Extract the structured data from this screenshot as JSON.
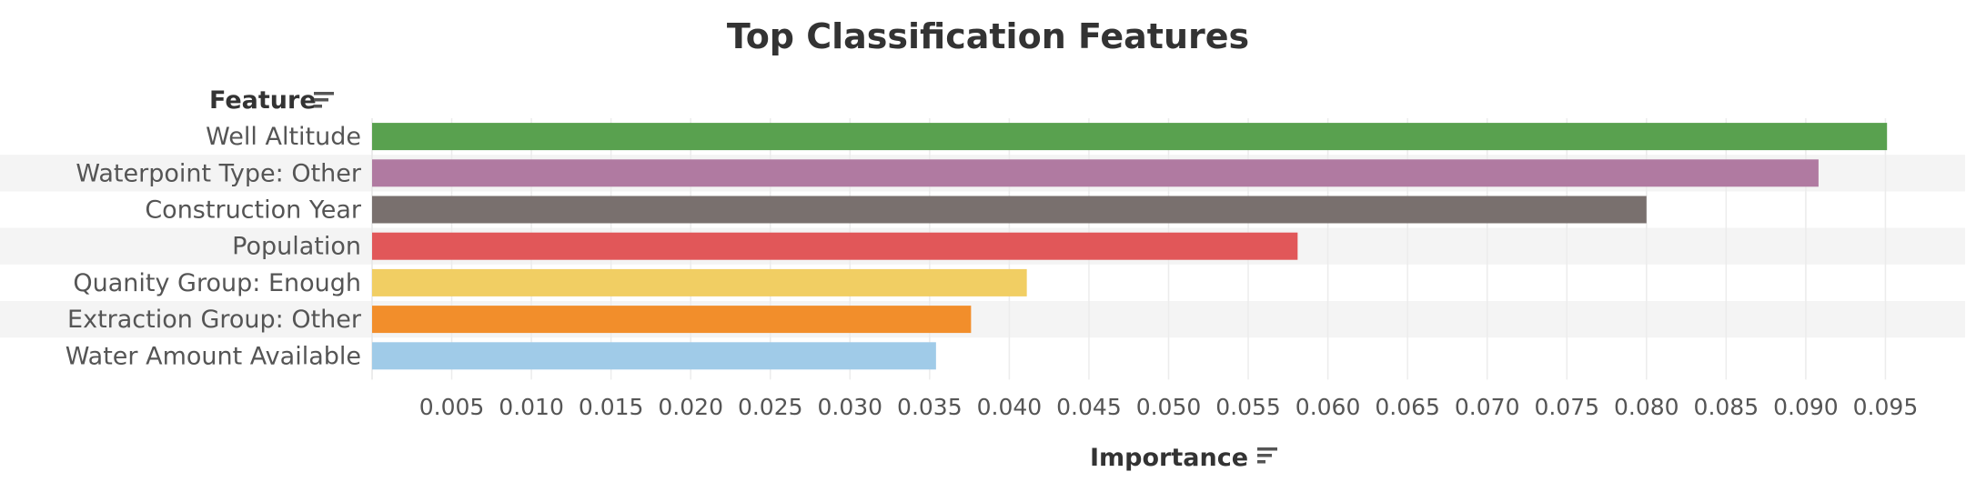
{
  "chart_data": {
    "type": "bar",
    "orientation": "horizontal",
    "title": "Top Classification Features",
    "ylabel": "Feature",
    "xlabel": "Importance",
    "categories": [
      "Well Altitude",
      "Waterpoint Type: Other",
      "Construction Year",
      "Population",
      "Quanity Group: Enough",
      "Extraction Group: Other",
      "Water Amount Available"
    ],
    "values": [
      0.0951,
      0.0908,
      0.08,
      0.0581,
      0.0411,
      0.0376,
      0.0354
    ],
    "colors": [
      "#59a14f",
      "#b07aa1",
      "#79706e",
      "#e15759",
      "#f1ce63",
      "#f28e2b",
      "#a0cbe8"
    ],
    "xlim": [
      0,
      0.1
    ],
    "xticks": [
      "0.005",
      "0.010",
      "0.015",
      "0.020",
      "0.025",
      "0.030",
      "0.035",
      "0.040",
      "0.045",
      "0.050",
      "0.055",
      "0.060",
      "0.065",
      "0.070",
      "0.075",
      "0.080",
      "0.085",
      "0.090",
      "0.095"
    ],
    "grid": true,
    "legend": "none"
  }
}
